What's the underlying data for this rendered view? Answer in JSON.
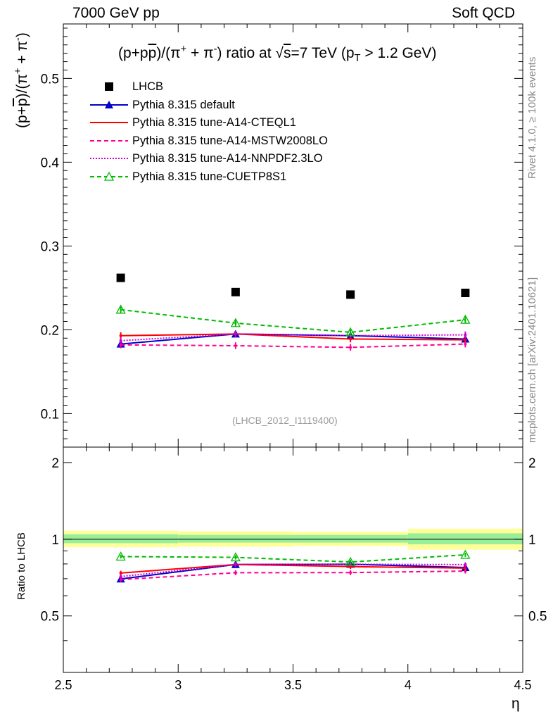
{
  "header": {
    "left": "7000 GeV pp",
    "right": "Soft QCD"
  },
  "side_labels": {
    "rivet": "Rivet 4.1.0, ≥ 100k events",
    "mcplots": "mcplots.cern.ch [arXiv:2401.10621]"
  },
  "chart_data": {
    "type": "scatter",
    "title": "(p+p̅)/(π⁺ + π⁻) ratio at √s=7 TeV (p_T > 1.2 GeV)",
    "title_parts": {
      "prefix": "(p+p",
      "pbar": "p",
      "mid": ")/(π",
      "sup1": "+",
      "mid2": " + π",
      "sup2": "-",
      "mid3": ") ratio at ",
      "sqrt": "√",
      "s": "s",
      "mid4": "=7 TeV (p",
      "sub": "T",
      "suffix": " > 1.2 GeV)"
    },
    "xlabel": "η",
    "ylabel": "(p+p̅)/(π⁺ + π⁻)",
    "ylabel_parts": {
      "a": "(p+",
      "pbar": "p",
      "b": ")/(π",
      "sup1": "+",
      "c": " + π",
      "sup2": "-",
      "d": ")"
    },
    "ratio_ylabel": "Ratio to LHCB",
    "analysis": "(LHCB_2012_I1119400)",
    "xlim": [
      2.5,
      4.5
    ],
    "ylim": [
      0.06,
      0.565
    ],
    "ratio_ylim": [
      0.3,
      2.3
    ],
    "x_ticks": [
      2.5,
      3,
      3.5,
      4,
      4.5
    ],
    "x_tick_labels": [
      "2.5",
      "3",
      "3.5",
      "4",
      "4.5"
    ],
    "y_ticks": [
      0.1,
      0.2,
      0.3,
      0.4,
      0.5
    ],
    "y_tick_labels": [
      "0.1",
      "0.2",
      "0.3",
      "0.4",
      "0.5"
    ],
    "ratio_ticks": [
      0.5,
      1,
      2
    ],
    "ratio_tick_labels": [
      "0.5",
      "1",
      "2"
    ],
    "x": [
      2.75,
      3.25,
      3.75,
      4.25
    ],
    "bins": [
      [
        2.5,
        3.0
      ],
      [
        3.0,
        3.5
      ],
      [
        3.5,
        4.0
      ],
      [
        4.0,
        4.5
      ]
    ],
    "data": {
      "name": "LHCB",
      "values": [
        0.262,
        0.245,
        0.242,
        0.244
      ],
      "stat_band": [
        0.07,
        0.06,
        0.06,
        0.09
      ],
      "total_band": [
        0.14,
        0.13,
        0.12,
        0.18
      ]
    },
    "series": [
      {
        "name": "Pythia 8.315 default",
        "color": "#0000cc",
        "style": "solid",
        "marker": "triangle-filled",
        "values": [
          0.183,
          0.195,
          0.193,
          0.189
        ],
        "errors": [
          0.004,
          0.004,
          0.004,
          0.004
        ]
      },
      {
        "name": "Pythia 8.315 tune-A14-CTEQL1",
        "color": "#ff0000",
        "style": "solid",
        "marker": "none",
        "values": [
          0.193,
          0.195,
          0.189,
          0.188
        ],
        "errors": [
          0.004,
          0.004,
          0.004,
          0.004
        ]
      },
      {
        "name": "Pythia 8.315 tune-A14-MSTW2008LO",
        "color": "#ff0090",
        "style": "dashed",
        "marker": "none",
        "values": [
          0.182,
          0.181,
          0.179,
          0.183
        ],
        "errors": [
          0.004,
          0.004,
          0.004,
          0.004
        ]
      },
      {
        "name": "Pythia 8.315 tune-A14-NNPDF2.3LO",
        "color": "#cc00cc",
        "style": "dotted",
        "marker": "none",
        "values": [
          0.187,
          0.195,
          0.193,
          0.194
        ],
        "errors": [
          0.004,
          0.004,
          0.004,
          0.004
        ]
      },
      {
        "name": "Pythia 8.315 tune-CUETP8S1",
        "color": "#00bb00",
        "style": "dashed",
        "marker": "triangle-open",
        "values": [
          0.224,
          0.208,
          0.197,
          0.212
        ],
        "errors": [
          0.004,
          0.004,
          0.004,
          0.004
        ]
      }
    ]
  }
}
